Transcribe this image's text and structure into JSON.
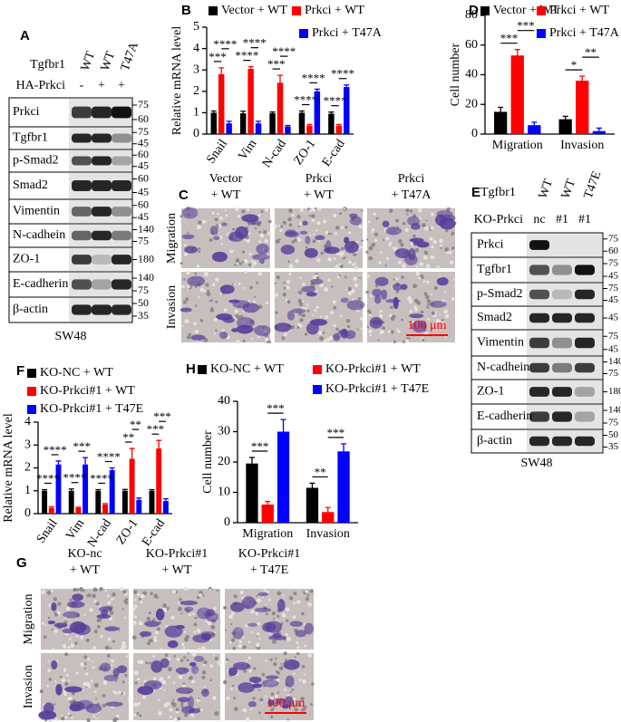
{
  "chart_data": [
    {
      "type": "bar",
      "panel": "B",
      "ylabel": "Relative mRNA level",
      "categories": [
        "Snail",
        "Vim",
        "N-cad",
        "ZO-1",
        "E-cad"
      ],
      "series": [
        {
          "name": "Vector + WT",
          "color": "#000000",
          "values": [
            1,
            0.97,
            0.97,
            1,
            0.95
          ],
          "errors": [
            0.08,
            0.1,
            0.06,
            0.08,
            0.08
          ]
        },
        {
          "name": "Prkci + WT",
          "color": "#ff0000",
          "values": [
            2.8,
            3.05,
            2.4,
            0.4,
            0.4
          ],
          "errors": [
            0.3,
            0.1,
            0.35,
            0.05,
            0.05
          ]
        },
        {
          "name": "Prkci + T47A",
          "color": "#0000ff",
          "values": [
            0.5,
            0.5,
            0.35,
            2.0,
            2.2
          ],
          "errors": [
            0.1,
            0.1,
            0.05,
            0.1,
            0.1
          ]
        }
      ],
      "significance": [
        [
          "***",
          "****"
        ],
        [
          "****",
          "****"
        ],
        [
          "***",
          "****"
        ],
        [
          "****",
          "****"
        ],
        [
          "****",
          "****"
        ]
      ],
      "ylim": [
        0,
        5
      ],
      "yticks": [
        0,
        1,
        2,
        3,
        4,
        5
      ]
    },
    {
      "type": "bar",
      "panel": "D",
      "ylabel": "Cell number",
      "categories": [
        "Migration",
        "Invasion"
      ],
      "series": [
        {
          "name": "Vector + WT",
          "color": "#000000",
          "values": [
            15,
            10
          ],
          "errors": [
            3,
            2
          ]
        },
        {
          "name": "Prkci + WT",
          "color": "#ff0000",
          "values": [
            53,
            36
          ],
          "errors": [
            4,
            3
          ]
        },
        {
          "name": "Prkci + T47A",
          "color": "#0000ff",
          "values": [
            6,
            2
          ],
          "errors": [
            2,
            2
          ]
        }
      ],
      "significance": [
        [
          "***",
          "***"
        ],
        [
          "*",
          "**"
        ]
      ],
      "ylim": [
        0,
        80
      ],
      "yticks": [
        0,
        20,
        40,
        60,
        80
      ]
    },
    {
      "type": "bar",
      "panel": "F",
      "ylabel": "Relative mRNA level",
      "categories": [
        "Snail",
        "Vim",
        "N-cad",
        "ZO-1",
        "E-cad"
      ],
      "series": [
        {
          "name": "KO-NC + WT",
          "color": "#000000",
          "values": [
            1,
            1,
            1,
            1,
            1
          ],
          "errors": [
            0.05,
            0.08,
            0.05,
            0.06,
            0.05
          ]
        },
        {
          "name": "KO-Prkci#1 + WT",
          "color": "#ff0000",
          "values": [
            0.25,
            0.25,
            0.4,
            2.4,
            2.85
          ],
          "errors": [
            0.05,
            0.03,
            0.04,
            0.45,
            0.35
          ]
        },
        {
          "name": "KO-Prkci#1 + T47E",
          "color": "#0000ff",
          "values": [
            2.15,
            2.15,
            1.9,
            0.6,
            0.55
          ],
          "errors": [
            0.15,
            0.3,
            0.1,
            0.08,
            0.1
          ]
        }
      ],
      "significance": [
        [
          "****",
          "****"
        ],
        [
          "****",
          "***"
        ],
        [
          "****",
          "****"
        ],
        [
          "**",
          "**"
        ],
        [
          "***",
          "***"
        ]
      ],
      "ylim": [
        0,
        4
      ],
      "yticks": [
        0,
        1,
        2,
        3,
        4
      ]
    },
    {
      "type": "bar",
      "panel": "H",
      "ylabel": "Cell number",
      "categories": [
        "Migration",
        "Invasion"
      ],
      "series": [
        {
          "name": "KO-NC + WT",
          "color": "#000000",
          "values": [
            19.5,
            11.5
          ],
          "errors": [
            2,
            1.5
          ]
        },
        {
          "name": "KO-Prkci#1 + WT",
          "color": "#ff0000",
          "values": [
            6,
            3.5
          ],
          "errors": [
            1,
            1.5
          ]
        },
        {
          "name": "KO-Prkci#1 + T47E",
          "color": "#0000ff",
          "values": [
            30,
            23.5
          ],
          "errors": [
            4,
            2.5
          ]
        }
      ],
      "significance": [
        [
          "***",
          "***"
        ],
        [
          "**",
          "***"
        ]
      ],
      "ylim": [
        0,
        40
      ],
      "yticks": [
        0,
        10,
        20,
        30,
        40
      ]
    }
  ],
  "blots": [
    {
      "panel": "A",
      "cell_line": "SW48",
      "lane_headers": [
        {
          "name": "Tgfbr1",
          "lanes": [
            "WT",
            "WT",
            "T47A"
          ]
        },
        {
          "name": "HA-Prkci",
          "lanes": [
            "-",
            "+",
            "+"
          ]
        }
      ],
      "rows": [
        {
          "name": "Prkci",
          "markers": [
            75,
            60
          ]
        },
        {
          "name": "Tgfbr1",
          "markers": [
            75,
            45
          ]
        },
        {
          "name": "p-Smad2",
          "markers": [
            60,
            45
          ]
        },
        {
          "name": "Smad2",
          "markers": [
            60,
            45
          ]
        },
        {
          "name": "Vimentin",
          "markers": [
            60,
            45
          ]
        },
        {
          "name": "N-cadhein",
          "markers": [
            140,
            75
          ]
        },
        {
          "name": "ZO-1",
          "markers": [
            180
          ]
        },
        {
          "name": "E-cadherin",
          "markers": [
            140,
            75
          ]
        },
        {
          "name": "β-actin",
          "markers": [
            50,
            35
          ]
        }
      ]
    },
    {
      "panel": "E",
      "cell_line": "SW48",
      "lane_headers": [
        {
          "name": "Tgfbr1",
          "lanes": [
            "WT",
            "WT",
            "T47E"
          ]
        },
        {
          "name": "KO-Prkci",
          "lanes": [
            "nc",
            "#1",
            "#1"
          ]
        }
      ],
      "rows": [
        {
          "name": "Prkci",
          "markers": [
            75,
            60
          ]
        },
        {
          "name": "Tgfbr1",
          "markers": [
            75,
            45
          ]
        },
        {
          "name": "p-Smad2",
          "markers": [
            75,
            45
          ]
        },
        {
          "name": "Smad2",
          "markers": [
            45
          ]
        },
        {
          "name": "Vimentin",
          "markers": [
            75,
            45
          ]
        },
        {
          "name": "N-cadhein",
          "markers": [
            140,
            75
          ]
        },
        {
          "name": "ZO-1",
          "markers": [
            180
          ]
        },
        {
          "name": "E-cadherin",
          "markers": [
            140,
            75
          ]
        },
        {
          "name": "β-actin",
          "markers": [
            50,
            35
          ]
        }
      ]
    }
  ],
  "micrographs": [
    {
      "panel": "C",
      "columns": [
        [
          "Vector",
          "+ WT"
        ],
        [
          "Prkci",
          "+ WT"
        ],
        [
          "Prkci",
          "+ T47A"
        ]
      ],
      "rows": [
        "Migration",
        "Invasion"
      ],
      "scale_bar": "100 μm"
    },
    {
      "panel": "G",
      "columns": [
        [
          "KO-nc",
          "+ WT"
        ],
        [
          "KO-Prkci#1",
          "+ WT"
        ],
        [
          "KO-Prkci#1",
          "+ T47E"
        ]
      ],
      "rows": [
        "Migration",
        "Invasion"
      ],
      "scale_bar": "100 μm"
    }
  ]
}
